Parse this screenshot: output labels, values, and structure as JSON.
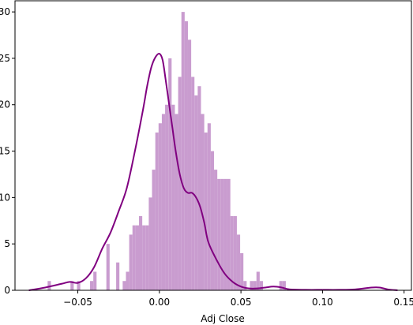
{
  "chart_data": {
    "type": "histogram",
    "title": "",
    "xlabel": "Adj Close",
    "ylabel": "",
    "xlim": [
      -0.0885,
      0.1545
    ],
    "ylim": [
      0,
      31.2
    ],
    "x_ticks": [
      -0.05,
      0.0,
      0.05,
      0.1,
      0.15
    ],
    "x_tick_labels": [
      "−0.05",
      "0.00",
      "0.05",
      "0.10",
      "0.15"
    ],
    "y_ticks": [
      0,
      5,
      10,
      15,
      20,
      25,
      30
    ],
    "y_tick_labels": [
      "0",
      "5",
      "10",
      "15",
      "20",
      "25",
      "30"
    ],
    "grid": false,
    "bar_color": "#c99ccf",
    "kde_color": "#800080",
    "bins": {
      "start": -0.0685,
      "width": 0.002,
      "counts": [
        1,
        0,
        0,
        0,
        0,
        0,
        0,
        1,
        0,
        1,
        0,
        0,
        0,
        1,
        2,
        0,
        0,
        0,
        5,
        0,
        0,
        3,
        0,
        1,
        2,
        6,
        7,
        7,
        8,
        7,
        7,
        10,
        13,
        17,
        18,
        19,
        20,
        25,
        20,
        19,
        23,
        30,
        29,
        27,
        23,
        21,
        22,
        19,
        17,
        18,
        15,
        13,
        12,
        12,
        12,
        12,
        8,
        8,
        6,
        4,
        1,
        0,
        1,
        1,
        2,
        1,
        0,
        0,
        0,
        0,
        0,
        1,
        1,
        0,
        0,
        0,
        0,
        0,
        0,
        0,
        0,
        0,
        0,
        0,
        0,
        0,
        0,
        0,
        0,
        0,
        0,
        0,
        0,
        0,
        0,
        0,
        0,
        0,
        0,
        0,
        0,
        0,
        0,
        0,
        0,
        0,
        0,
        0,
        0,
        0,
        0,
        0,
        0,
        0,
        0,
        0,
        0,
        0,
        0,
        0,
        0,
        0,
        0,
        0,
        0,
        0,
        0,
        0,
        0,
        0,
        0,
        0,
        0,
        0,
        0,
        0,
        0,
        0,
        0,
        0,
        0,
        0,
        1
      ]
    },
    "kde": {
      "x": [
        -0.08,
        -0.07,
        -0.06,
        -0.055,
        -0.05,
        -0.045,
        -0.04,
        -0.035,
        -0.03,
        -0.025,
        -0.02,
        -0.015,
        -0.01,
        -0.0075,
        -0.005,
        -0.0025,
        0.0,
        0.002,
        0.004,
        0.006,
        0.008,
        0.01,
        0.0125,
        0.015,
        0.0175,
        0.02,
        0.0225,
        0.025,
        0.0275,
        0.03,
        0.035,
        0.04,
        0.045,
        0.05,
        0.055,
        0.06,
        0.065,
        0.07,
        0.075,
        0.08,
        0.09,
        0.1,
        0.11,
        0.12,
        0.13,
        0.135,
        0.14,
        0.146
      ],
      "y": [
        0,
        0.3,
        0.7,
        0.9,
        0.8,
        1.3,
        2.5,
        4.5,
        6.2,
        8.5,
        11,
        15,
        19.5,
        22,
        24,
        25.1,
        25.5,
        24.8,
        22.5,
        20,
        17.5,
        15,
        12.5,
        11,
        10.5,
        10.5,
        10,
        9,
        7.3,
        5.2,
        3.3,
        1.8,
        0.9,
        0.4,
        0.2,
        0.2,
        0.3,
        0.4,
        0.3,
        0.1,
        0.05,
        0.05,
        0.05,
        0.1,
        0.3,
        0.3,
        0.1,
        0
      ]
    }
  }
}
